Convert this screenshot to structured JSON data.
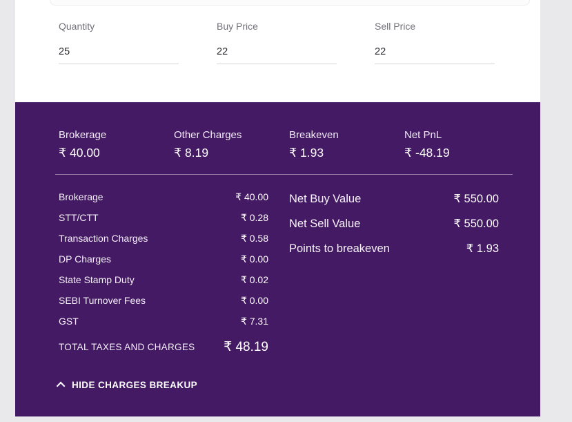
{
  "inputs": {
    "fields": [
      {
        "label": "Quantity",
        "value": "25"
      },
      {
        "label": "Buy Price",
        "value": "22"
      },
      {
        "label": "Sell Price",
        "value": "22"
      }
    ]
  },
  "summary": {
    "items": [
      {
        "label": "Brokerage",
        "value": "₹ 40.00"
      },
      {
        "label": "Other Charges",
        "value": "₹ 8.19"
      },
      {
        "label": "Breakeven",
        "value": "₹ 1.93"
      },
      {
        "label": "Net PnL",
        "value": "₹ -48.19"
      }
    ]
  },
  "charges_breakup": {
    "rows": [
      {
        "label": "Brokerage",
        "value": "₹ 40.00"
      },
      {
        "label": "STT/CTT",
        "value": "₹ 0.28"
      },
      {
        "label": "Transaction Charges",
        "value": "₹ 0.58"
      },
      {
        "label": "DP Charges",
        "value": "₹ 0.00"
      },
      {
        "label": "State Stamp Duty",
        "value": "₹ 0.02"
      },
      {
        "label": "SEBI Turnover Fees",
        "value": "₹ 0.00"
      },
      {
        "label": "GST",
        "value": "₹ 7.31"
      }
    ],
    "total": {
      "label": "TOTAL TAXES AND CHARGES",
      "value": "₹ 48.19"
    }
  },
  "net_values": {
    "rows": [
      {
        "label": "Net Buy Value",
        "value": "₹ 550.00"
      },
      {
        "label": "Net Sell Value",
        "value": "₹ 550.00"
      },
      {
        "label": "Points to breakeven",
        "value": "₹ 1.93"
      }
    ]
  },
  "toggle": {
    "label": "HIDE CHARGES BREAKUP",
    "icon": "chevron-up-icon"
  },
  "colors": {
    "panel_bg": "#451a64",
    "page_bg": "#e9e9eb",
    "accent_text": "#ffffff"
  }
}
